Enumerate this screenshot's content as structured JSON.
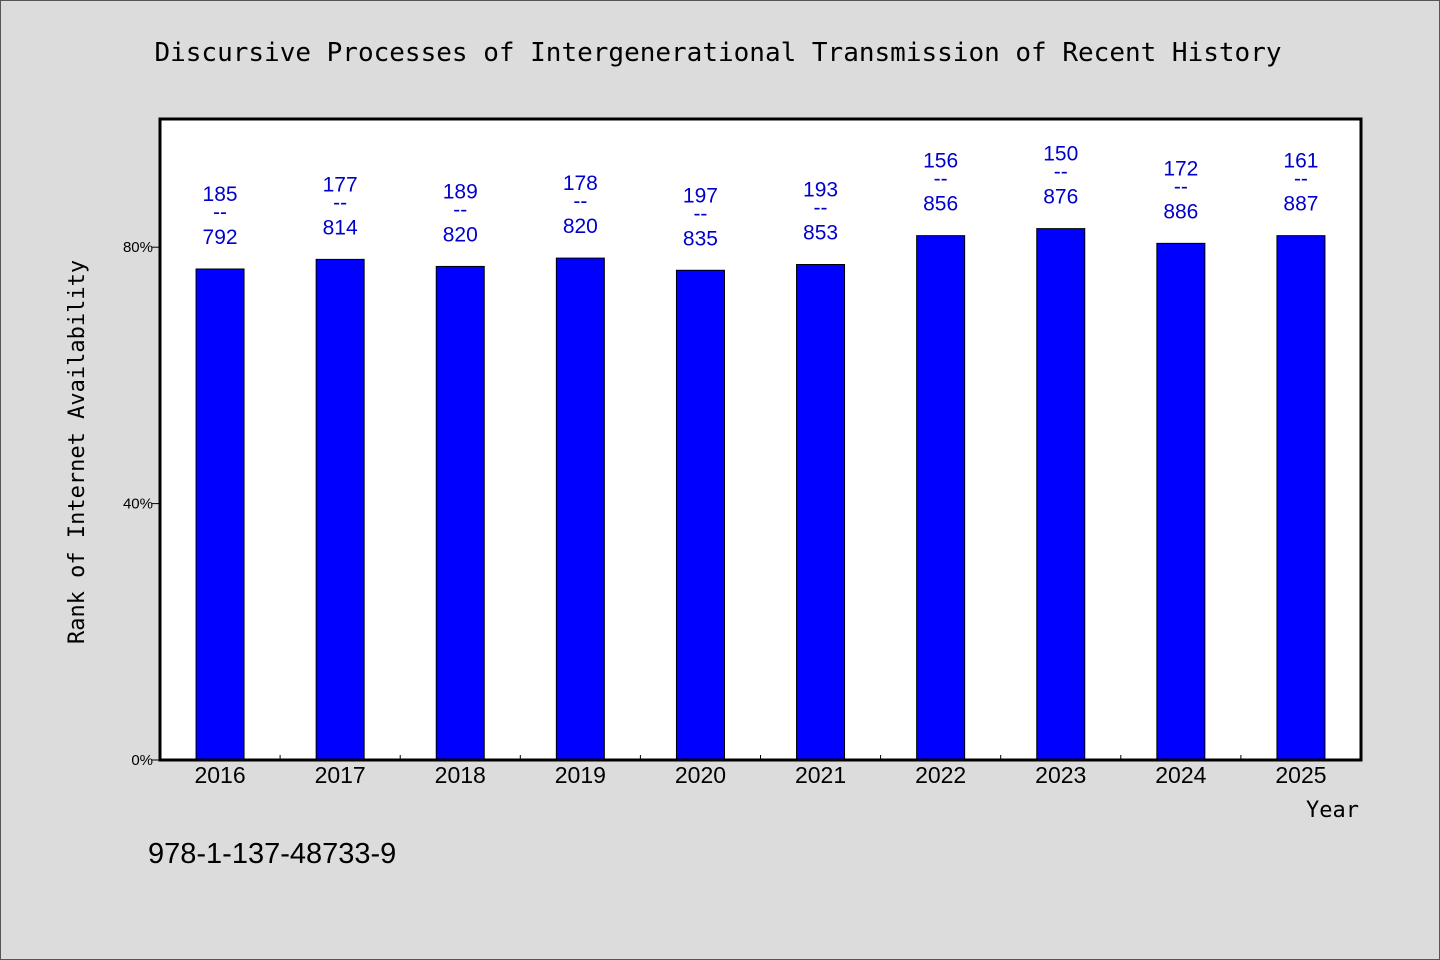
{
  "chart_data": {
    "type": "bar",
    "title": "Discursive Processes of Intergenerational Transmission of Recent History",
    "xlabel": "Year",
    "ylabel": "Rank of Internet Availability",
    "ylim": [
      0,
      100
    ],
    "yticks": [
      0,
      40,
      80
    ],
    "ytick_labels": [
      "0%",
      "40%",
      "80%"
    ],
    "categories": [
      "2016",
      "2017",
      "2018",
      "2019",
      "2020",
      "2021",
      "2022",
      "2023",
      "2024",
      "2025"
    ],
    "values": [
      76.6,
      78.1,
      77.0,
      78.3,
      76.4,
      77.3,
      81.8,
      82.9,
      80.6,
      81.8
    ],
    "data_labels": [
      {
        "top": "185",
        "sep": "--",
        "bottom": "792"
      },
      {
        "top": "177",
        "sep": "--",
        "bottom": "814"
      },
      {
        "top": "189",
        "sep": "--",
        "bottom": "820"
      },
      {
        "top": "178",
        "sep": "--",
        "bottom": "820"
      },
      {
        "top": "197",
        "sep": "--",
        "bottom": "835"
      },
      {
        "top": "193",
        "sep": "--",
        "bottom": "853"
      },
      {
        "top": "156",
        "sep": "--",
        "bottom": "856"
      },
      {
        "top": "150",
        "sep": "--",
        "bottom": "876"
      },
      {
        "top": "172",
        "sep": "--",
        "bottom": "886"
      },
      {
        "top": "161",
        "sep": "--",
        "bottom": "887"
      }
    ],
    "bar_color": "#0000ff",
    "label_color": "#0000cc",
    "plot_background": "#ffffff",
    "grid": false,
    "legend": "none"
  },
  "footer": {
    "isbn": "978-1-137-48733-9"
  }
}
